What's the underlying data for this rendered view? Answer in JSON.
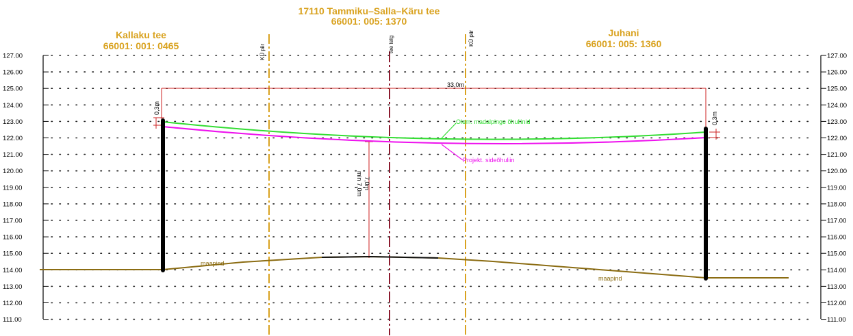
{
  "title": {
    "line1": "17110  Tammiku–Salla–Käru  tee",
    "line2": "66001: 005: 1370"
  },
  "left_property": {
    "name": "Kallaku  tee",
    "code": "66001: 001: 0465"
  },
  "right_property": {
    "name": "Juhani",
    "code": "66001: 005: 1360"
  },
  "boundary_label": "KÜ piir",
  "axis_label": "tee telg",
  "y_ticks": [
    "127.00",
    "126.00",
    "125.00",
    "124.00",
    "123.00",
    "122.00",
    "121.00",
    "120.00",
    "119.00",
    "118.00",
    "117.00",
    "116.00",
    "115.00",
    "114.00",
    "113.00",
    "112.00",
    "111.00"
  ],
  "dimension_width": "33,0m",
  "left_offset": "0,3m",
  "right_offset": "0,3m",
  "clearance_a": "7,0m",
  "clearance_b": "min 7,0m",
  "wire_label": "Olem. madalpinge õhuliinid",
  "new_wire_label": "Projekt. sideõhuliin",
  "ground_left_label": "maapind",
  "ground_right_label": "maapind",
  "colors": {
    "existing_line": "#33dd33",
    "projected_line": "#ee11ee",
    "ground": "#8b6c12",
    "dimension": "#cc2222",
    "boundary": "#d9a21f",
    "centerline": "#8b1a2e",
    "pole": "#000000"
  }
}
